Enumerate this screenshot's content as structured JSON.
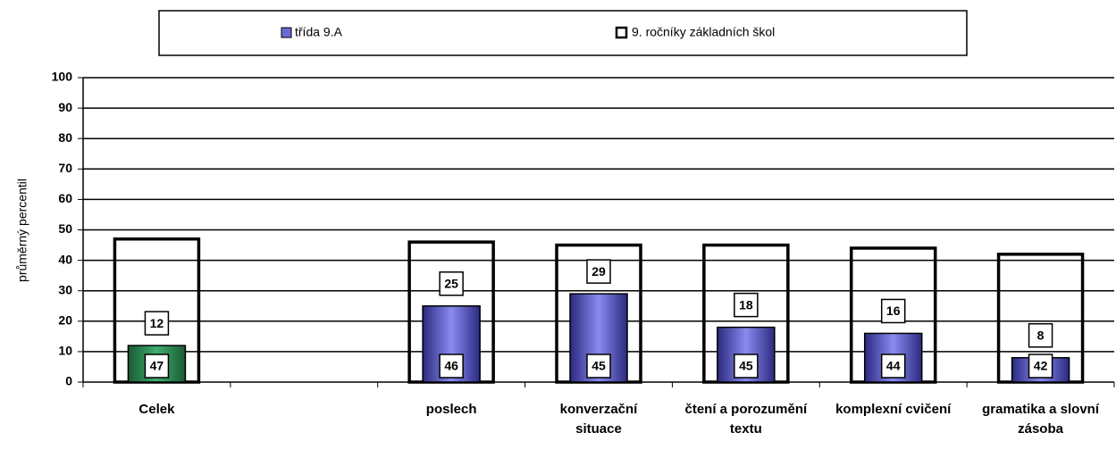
{
  "chart_data": {
    "type": "bar",
    "y_label": "průměrný percentil",
    "categories": [
      "Celek",
      null,
      "poslech",
      "konverzační situace",
      "čtení a porozumění textu",
      "komplexní cvičení",
      "gramatika a slovní zásoba"
    ],
    "series": [
      {
        "name": "třída 9.A",
        "color": "#6a6ad6",
        "point_colors": [
          "#2e8b57",
          null,
          "#6a6ad6",
          "#6a6ad6",
          "#6a6ad6",
          "#6a6ad6",
          "#6a6ad6"
        ],
        "values": [
          12,
          null,
          25,
          29,
          18,
          16,
          8
        ]
      },
      {
        "name": "9. ročníky základních škol",
        "color": "#ffffff",
        "values": [
          47,
          null,
          46,
          45,
          45,
          44,
          42
        ]
      }
    ],
    "ylim": [
      0,
      100
    ],
    "yticks": [
      0,
      10,
      20,
      30,
      40,
      50,
      60,
      70,
      80,
      90,
      100
    ],
    "grid": true
  }
}
